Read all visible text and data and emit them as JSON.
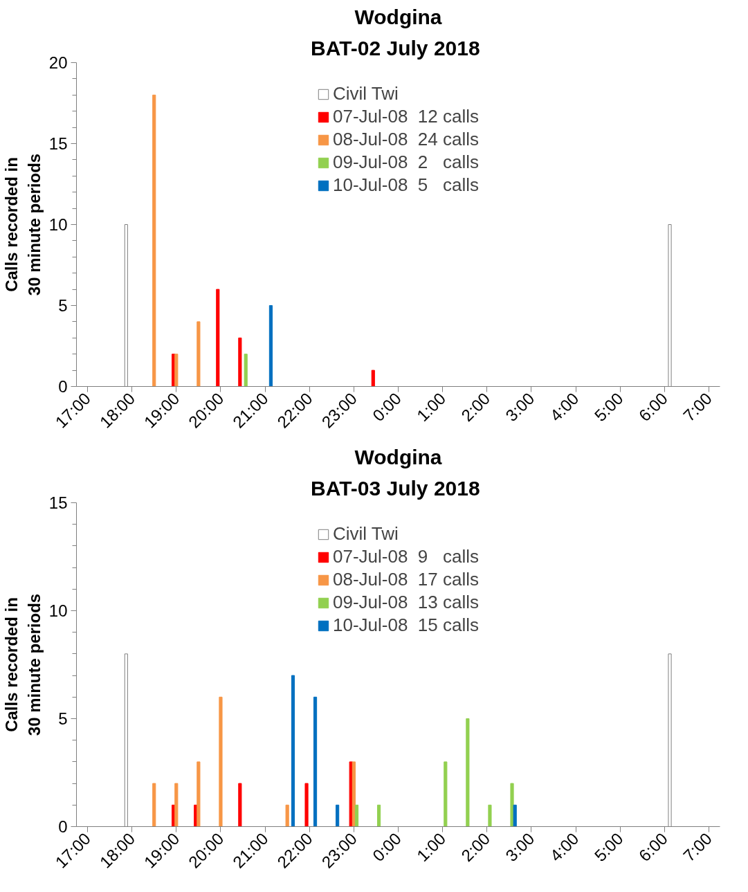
{
  "chart_data": [
    {
      "type": "bar",
      "title": "Wodgina",
      "subtitle": "BAT-02  July 2018",
      "ylabel": "Calls recorded in\n30 minute periods",
      "xlim": [
        "2018-07-07T16:45",
        "2018-07-08T07:15"
      ],
      "ylim": [
        0,
        20
      ],
      "yticks": [
        0,
        5,
        10,
        15,
        20
      ],
      "xticks": [
        {
          "value": "2018-07-07T17:00",
          "label": "17:00"
        },
        {
          "value": "2018-07-07T18:00",
          "label": "18:00"
        },
        {
          "value": "2018-07-07T19:00",
          "label": "19:00"
        },
        {
          "value": "2018-07-07T20:00",
          "label": "20:00"
        },
        {
          "value": "2018-07-07T21:00",
          "label": "21:00"
        },
        {
          "value": "2018-07-07T22:00",
          "label": "22:00"
        },
        {
          "value": "2018-07-07T23:00",
          "label": "23:00"
        },
        {
          "value": "2018-07-08T00:00",
          "label": "0:00"
        },
        {
          "value": "2018-07-08T01:00",
          "label": "1:00"
        },
        {
          "value": "2018-07-08T02:00",
          "label": "2:00"
        },
        {
          "value": "2018-07-08T03:00",
          "label": "3:00"
        },
        {
          "value": "2018-07-08T04:00",
          "label": "4:00"
        },
        {
          "value": "2018-07-08T05:00",
          "label": "5:00"
        },
        {
          "value": "2018-07-08T06:00",
          "label": "6:00"
        },
        {
          "value": "2018-07-08T07:00",
          "label": "7:00"
        }
      ],
      "legend": "top",
      "grid": false,
      "series": [
        {
          "name": "Civil Twi",
          "color": "#ffffff",
          "x": [
            "2018-07-07T18:00",
            "2018-07-08T06:15"
          ],
          "values": [
            10,
            10
          ]
        },
        {
          "name": "07-Jul-08  12 calls",
          "color": "#ff0000",
          "x": [
            "2018-07-07T19:00",
            "2018-07-07T20:00",
            "2018-07-07T20:30",
            "2018-07-07T23:30"
          ],
          "values": [
            2,
            6,
            3,
            1
          ]
        },
        {
          "name": "08-Jul-08  24 calls",
          "color": "#f79646",
          "x": [
            "2018-07-07T18:30",
            "2018-07-07T19:00",
            "2018-07-07T19:30"
          ],
          "values": [
            18,
            2,
            4
          ]
        },
        {
          "name": "09-Jul-08  2   calls",
          "color": "#92d050",
          "x": [
            "2018-07-07T20:30"
          ],
          "values": [
            2
          ]
        },
        {
          "name": "10-Jul-08  5   calls",
          "color": "#0070c0",
          "x": [
            "2018-07-07T21:00"
          ],
          "values": [
            5
          ]
        }
      ]
    },
    {
      "type": "bar",
      "title": "Wodgina",
      "subtitle": "BAT-03  July 2018",
      "ylabel": "Calls recorded in\n30 minute periods",
      "xlim": [
        "2018-07-07T16:45",
        "2018-07-08T07:15"
      ],
      "ylim": [
        0,
        15
      ],
      "yticks": [
        0,
        5,
        10,
        15
      ],
      "xticks": [
        {
          "value": "2018-07-07T17:00",
          "label": "17:00"
        },
        {
          "value": "2018-07-07T18:00",
          "label": "18:00"
        },
        {
          "value": "2018-07-07T19:00",
          "label": "19:00"
        },
        {
          "value": "2018-07-07T20:00",
          "label": "20:00"
        },
        {
          "value": "2018-07-07T21:00",
          "label": "21:00"
        },
        {
          "value": "2018-07-07T22:00",
          "label": "22:00"
        },
        {
          "value": "2018-07-07T23:00",
          "label": "23:00"
        },
        {
          "value": "2018-07-08T00:00",
          "label": "0:00"
        },
        {
          "value": "2018-07-08T01:00",
          "label": "1:00"
        },
        {
          "value": "2018-07-08T02:00",
          "label": "2:00"
        },
        {
          "value": "2018-07-08T03:00",
          "label": "3:00"
        },
        {
          "value": "2018-07-08T04:00",
          "label": "4:00"
        },
        {
          "value": "2018-07-08T05:00",
          "label": "5:00"
        },
        {
          "value": "2018-07-08T06:00",
          "label": "6:00"
        },
        {
          "value": "2018-07-08T07:00",
          "label": "7:00"
        }
      ],
      "legend": "top",
      "grid": false,
      "series": [
        {
          "name": "Civil Twi",
          "color": "#ffffff",
          "x": [
            "2018-07-07T18:00",
            "2018-07-08T06:15"
          ],
          "values": [
            8,
            8
          ]
        },
        {
          "name": "07-Jul-08  9   calls",
          "color": "#ff0000",
          "x": [
            "2018-07-07T19:00",
            "2018-07-07T19:30",
            "2018-07-07T20:30",
            "2018-07-07T22:00",
            "2018-07-07T23:00"
          ],
          "values": [
            1,
            1,
            2,
            2,
            3
          ]
        },
        {
          "name": "08-Jul-08  17 calls",
          "color": "#f79646",
          "x": [
            "2018-07-07T18:30",
            "2018-07-07T19:00",
            "2018-07-07T19:30",
            "2018-07-07T20:00",
            "2018-07-07T21:30",
            "2018-07-07T23:00"
          ],
          "values": [
            2,
            2,
            3,
            6,
            1,
            3
          ]
        },
        {
          "name": "09-Jul-08  13 calls",
          "color": "#92d050",
          "x": [
            "2018-07-07T23:00",
            "2018-07-07T23:30",
            "2018-07-08T01:00",
            "2018-07-08T01:30",
            "2018-07-08T02:00",
            "2018-07-08T02:30"
          ],
          "values": [
            1,
            1,
            3,
            5,
            1,
            2
          ]
        },
        {
          "name": "10-Jul-08  15 calls",
          "color": "#0070c0",
          "x": [
            "2018-07-07T21:30",
            "2018-07-07T22:00",
            "2018-07-07T22:30",
            "2018-07-08T02:30"
          ],
          "values": [
            7,
            6,
            1,
            1
          ]
        }
      ]
    }
  ]
}
